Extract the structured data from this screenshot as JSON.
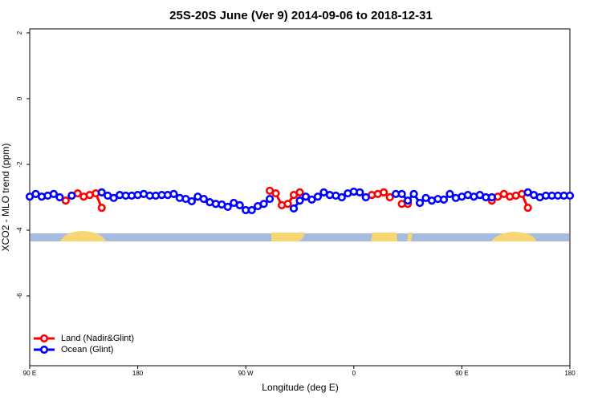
{
  "chart_data": {
    "type": "line",
    "title": "25S-20S June (Ver 9)   2014-09-06 to 2018-12-31",
    "x_label": "Longitude (deg E)",
    "y_label": "XCO2 - MLO trend (ppm)",
    "xlim": [
      90,
      540
    ],
    "xticks": [
      {
        "value": 90,
        "label": "90 E"
      },
      {
        "value": 180,
        "label": "180"
      },
      {
        "value": 270,
        "label": "90 W"
      },
      {
        "value": 360,
        "label": "0"
      },
      {
        "value": 450,
        "label": "90 E"
      },
      {
        "value": 540,
        "label": "180"
      }
    ],
    "ylim": [
      -8,
      2
    ],
    "yticks": [
      -6,
      -4,
      -2,
      0,
      2
    ],
    "legend": "bottom-left",
    "x": [
      90,
      95,
      100,
      105,
      110,
      115,
      120,
      125,
      130,
      135,
      140,
      145,
      150,
      155,
      160,
      165,
      170,
      175,
      180,
      185,
      190,
      195,
      200,
      205,
      210,
      215,
      220,
      225,
      230,
      235,
      240,
      245,
      250,
      255,
      260,
      265,
      270,
      275,
      280,
      285,
      290,
      295,
      300,
      305,
      310,
      315,
      320,
      325,
      330,
      335,
      340,
      345,
      350,
      355,
      360,
      365,
      370,
      375,
      380,
      385,
      390,
      395,
      400,
      405,
      410,
      415,
      420,
      425,
      430,
      435,
      440,
      445,
      450,
      455,
      460,
      465,
      470,
      475,
      480,
      485,
      490,
      495,
      500,
      505,
      510,
      515,
      520,
      525,
      530,
      535,
      540
    ],
    "series": [
      {
        "name": "Land (Nadir&Glint)",
        "color": "#ff0000",
        "values": [
          null,
          null,
          null,
          null,
          null,
          null,
          -3.1,
          -2.95,
          -2.88,
          -2.98,
          -2.93,
          -2.88,
          -3.32,
          null,
          null,
          null,
          null,
          null,
          null,
          null,
          null,
          null,
          null,
          null,
          null,
          null,
          null,
          null,
          null,
          null,
          null,
          null,
          null,
          null,
          null,
          null,
          null,
          null,
          null,
          null,
          -2.8,
          -2.88,
          -3.24,
          -3.2,
          -2.93,
          -2.85,
          null,
          null,
          null,
          null,
          null,
          null,
          null,
          null,
          null,
          null,
          null,
          -2.93,
          -2.9,
          -2.85,
          -3.0,
          null,
          -3.2,
          -3.2,
          null,
          null,
          null,
          null,
          null,
          null,
          null,
          null,
          null,
          null,
          null,
          null,
          null,
          -3.1,
          -2.98,
          -2.9,
          -2.98,
          -2.95,
          -2.9,
          -3.32,
          null,
          null,
          null,
          null,
          null,
          null,
          null
        ]
      },
      {
        "name": "Ocean (Glint)",
        "color": "#0000ff",
        "values": [
          -2.98,
          -2.9,
          -2.98,
          -2.95,
          -2.9,
          -3.0,
          null,
          -2.95,
          null,
          null,
          null,
          null,
          -2.85,
          -2.95,
          -3.02,
          -2.93,
          -2.95,
          -2.95,
          -2.93,
          -2.9,
          -2.95,
          -2.95,
          -2.93,
          -2.93,
          -2.9,
          -3.02,
          -3.05,
          -3.12,
          -2.98,
          -3.05,
          -3.15,
          -3.2,
          -3.22,
          -3.29,
          -3.17,
          -3.24,
          -3.39,
          -3.39,
          -3.27,
          -3.2,
          -3.05,
          null,
          null,
          null,
          -3.34,
          -3.1,
          -2.98,
          -3.07,
          -2.98,
          -2.85,
          -2.93,
          -2.95,
          -3.0,
          -2.88,
          -2.83,
          -2.85,
          -3.0,
          null,
          null,
          null,
          null,
          -2.9,
          -2.9,
          -3.1,
          -2.9,
          -3.17,
          -3.02,
          -3.1,
          -3.05,
          -3.07,
          -2.9,
          -3.02,
          -2.98,
          -2.93,
          -2.98,
          -2.93,
          -3.0,
          -3.0,
          null,
          null,
          null,
          null,
          null,
          -2.85,
          -2.93,
          -3.0,
          -2.95,
          -2.95,
          -2.95,
          -2.95,
          -2.95
        ]
      }
    ]
  }
}
